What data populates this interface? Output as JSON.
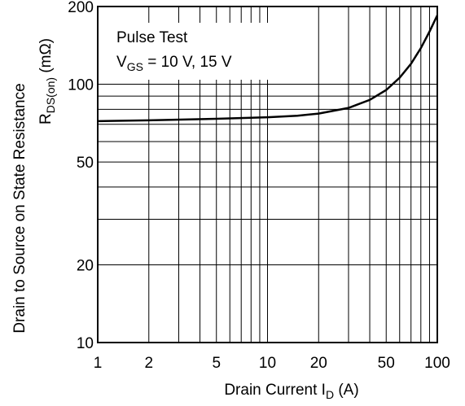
{
  "chart_data": {
    "type": "line",
    "x_scale": "log",
    "y_scale": "log",
    "xlim": [
      1,
      100
    ],
    "ylim": [
      10,
      200
    ],
    "grid": true,
    "x_ticks": [
      "1",
      "2",
      "5",
      "10",
      "20",
      "50",
      "100"
    ],
    "y_ticks": [
      "10",
      "20",
      "50",
      "100",
      "200"
    ],
    "xlabel": {
      "main": "Drain Current  I",
      "sub": "D",
      "unit": "  (A)"
    },
    "ylabel": {
      "line1": "Drain to Source on State Resistance",
      "line2_main": "R",
      "line2_sub": "DS(on)",
      "line2_unit": "  (mΩ)"
    },
    "annotation": {
      "line1": "Pulse Test",
      "line2_main": "V",
      "line2_sub": "GS",
      "line2_rest": " = 10 V, 15 V"
    },
    "series": [
      {
        "x": [
          1,
          2,
          5,
          10,
          15,
          20,
          30,
          40,
          50,
          60,
          70,
          80,
          90,
          100
        ],
        "y": [
          72,
          72.5,
          73.5,
          74.5,
          75.5,
          77,
          81,
          87,
          95,
          106,
          120,
          138,
          160,
          185
        ]
      }
    ]
  }
}
